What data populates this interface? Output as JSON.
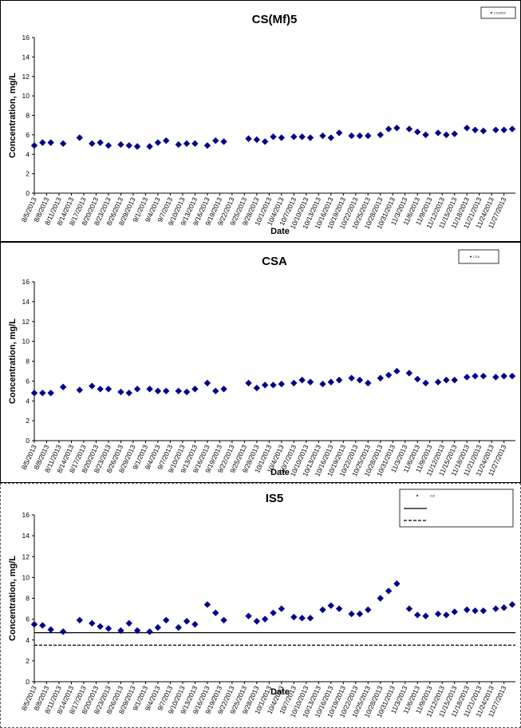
{
  "chart_data": [
    {
      "type": "scatter",
      "title": "CS(Mf)5",
      "xlabel": "Date",
      "ylabel": "Concentration, mg/L",
      "ylim": [
        0,
        16
      ],
      "yticks": [
        0,
        2,
        4,
        6,
        8,
        10,
        12,
        14,
        16
      ],
      "grid": false,
      "legend": "top-right",
      "legend_entries": [
        "CS(Mf)5"
      ],
      "x_tick_labels": [
        "8/5/2013",
        "8/8/2013",
        "8/11/2013",
        "8/14/2013",
        "8/17/2013",
        "8/20/2013",
        "8/23/2013",
        "8/26/2013",
        "8/29/2013",
        "9/1/2013",
        "9/4/2013",
        "9/7/2013",
        "9/10/2013",
        "9/13/2013",
        "9/16/2013",
        "9/19/2013",
        "9/22/2013",
        "9/25/2013",
        "9/28/2013",
        "10/1/2013",
        "10/4/2013",
        "10/7/2013",
        "10/10/2013",
        "10/13/2013",
        "10/16/2013",
        "10/19/2013",
        "10/22/2013",
        "10/25/2013",
        "10/28/2013",
        "10/31/2013",
        "11/3/2013",
        "11/6/2013",
        "11/9/2013",
        "11/12/2013",
        "11/15/2013",
        "11/18/2013",
        "11/21/2013",
        "11/24/2013",
        "11/27/2013"
      ],
      "series": [
        {
          "name": "CS(Mf)5",
          "color": "#00008B",
          "marker": "diamond",
          "x": [
            "8/5/2013",
            "8/7/2013",
            "8/9/2013",
            "8/12/2013",
            "8/16/2013",
            "8/19/2013",
            "8/21/2013",
            "8/23/2013",
            "8/26/2013",
            "8/28/2013",
            "8/30/2013",
            "9/2/2013",
            "9/4/2013",
            "9/6/2013",
            "9/9/2013",
            "9/11/2013",
            "9/13/2013",
            "9/16/2013",
            "9/18/2013",
            "9/20/2013",
            "9/26/2013",
            "9/28/2013",
            "9/30/2013",
            "10/2/2013",
            "10/4/2013",
            "10/7/2013",
            "10/9/2013",
            "10/11/2013",
            "10/14/2013",
            "10/16/2013",
            "10/18/2013",
            "10/21/2013",
            "10/23/2013",
            "10/25/2013",
            "10/28/2013",
            "10/30/2013",
            "11/1/2013",
            "11/4/2013",
            "11/6/2013",
            "11/8/2013",
            "11/11/2013",
            "11/13/2013",
            "11/15/2013",
            "11/18/2013",
            "11/20/2013",
            "11/22/2013",
            "11/25/2013",
            "11/27/2013",
            "11/29/2013"
          ],
          "y": [
            4.9,
            5.2,
            5.2,
            5.1,
            5.7,
            5.1,
            5.2,
            4.9,
            5.0,
            4.9,
            4.8,
            4.8,
            5.2,
            5.4,
            5.0,
            5.1,
            5.1,
            4.9,
            5.4,
            5.3,
            5.6,
            5.5,
            5.3,
            5.8,
            5.7,
            5.8,
            5.8,
            5.7,
            5.9,
            5.7,
            6.2,
            5.9,
            5.9,
            5.9,
            6.0,
            6.6,
            6.7,
            6.6,
            6.3,
            6.0,
            6.2,
            6.0,
            6.1,
            6.7,
            6.5,
            6.4,
            6.5,
            6.5,
            6.6
          ]
        }
      ]
    },
    {
      "type": "scatter",
      "title": "CSA",
      "xlabel": "Date",
      "ylabel": "Concentration, mg/L",
      "ylim": [
        0,
        16
      ],
      "yticks": [
        0,
        2,
        4,
        6,
        8,
        10,
        12,
        14,
        16
      ],
      "grid": false,
      "legend": "top-right",
      "legend_entries": [
        "CSA"
      ],
      "x_tick_labels": [
        "8/5/2013",
        "8/8/2013",
        "8/11/2013",
        "8/14/2013",
        "8/17/2013",
        "8/20/2013",
        "8/23/2013",
        "8/26/2013",
        "8/29/2013",
        "9/1/2013",
        "9/4/2013",
        "9/7/2013",
        "9/10/2013",
        "9/13/2013",
        "9/16/2013",
        "9/19/2013",
        "9/22/2013",
        "9/25/2013",
        "9/28/2013",
        "10/1/2013",
        "10/4/2013",
        "10/7/2013",
        "10/10/2013",
        "10/13/2013",
        "10/16/2013",
        "10/19/2013",
        "10/22/2013",
        "10/25/2013",
        "10/28/2013",
        "10/31/2013",
        "11/3/2013",
        "11/6/2013",
        "11/9/2013",
        "11/12/2013",
        "11/15/2013",
        "11/18/2013",
        "11/21/2013",
        "11/24/2013",
        "11/27/2013"
      ],
      "series": [
        {
          "name": "CSA",
          "color": "#00008B",
          "marker": "diamond",
          "x": [
            "8/5/2013",
            "8/7/2013",
            "8/9/2013",
            "8/12/2013",
            "8/16/2013",
            "8/19/2013",
            "8/21/2013",
            "8/23/2013",
            "8/26/2013",
            "8/28/2013",
            "8/30/2013",
            "9/2/2013",
            "9/4/2013",
            "9/6/2013",
            "9/9/2013",
            "9/11/2013",
            "9/13/2013",
            "9/16/2013",
            "9/18/2013",
            "9/20/2013",
            "9/26/2013",
            "9/28/2013",
            "9/30/2013",
            "10/2/2013",
            "10/4/2013",
            "10/7/2013",
            "10/9/2013",
            "10/11/2013",
            "10/14/2013",
            "10/16/2013",
            "10/18/2013",
            "10/21/2013",
            "10/23/2013",
            "10/25/2013",
            "10/28/2013",
            "10/30/2013",
            "11/1/2013",
            "11/4/2013",
            "11/6/2013",
            "11/8/2013",
            "11/11/2013",
            "11/13/2013",
            "11/15/2013",
            "11/18/2013",
            "11/20/2013",
            "11/22/2013",
            "11/25/2013",
            "11/27/2013",
            "11/29/2013"
          ],
          "y": [
            4.8,
            4.8,
            4.8,
            5.4,
            5.1,
            5.5,
            5.2,
            5.2,
            4.9,
            4.8,
            5.2,
            5.2,
            5.0,
            5.0,
            5.0,
            4.9,
            5.2,
            5.8,
            5.0,
            5.2,
            5.8,
            5.3,
            5.6,
            5.6,
            5.7,
            5.8,
            6.1,
            5.9,
            5.7,
            5.9,
            6.1,
            6.3,
            6.1,
            5.8,
            6.3,
            6.6,
            7.0,
            6.8,
            6.2,
            5.8,
            5.9,
            6.1,
            6.1,
            6.4,
            6.5,
            6.5,
            6.4,
            6.5,
            6.5
          ]
        }
      ]
    },
    {
      "type": "scatter",
      "title": "IS5",
      "xlabel": "Date",
      "ylabel": "Concentration, mg/L",
      "ylim": [
        0,
        16
      ],
      "yticks": [
        0,
        2,
        4,
        6,
        8,
        10,
        12,
        14,
        16
      ],
      "grid": false,
      "legend": "top-right",
      "legend_entries": [
        "IS5"
      ],
      "x_tick_labels": [
        "8/5/2013",
        "8/8/2013",
        "8/11/2013",
        "8/14/2013",
        "8/17/2013",
        "8/20/2013",
        "8/23/2013",
        "8/26/2013",
        "8/29/2013",
        "9/1/2013",
        "9/4/2013",
        "9/7/2013",
        "9/10/2013",
        "9/13/2013",
        "9/16/2013",
        "9/19/2013",
        "9/22/2013",
        "9/25/2013",
        "9/28/2013",
        "10/1/2013",
        "10/4/2013",
        "10/7/2013",
        "10/10/2013",
        "10/13/2013",
        "10/16/2013",
        "10/19/2013",
        "10/22/2013",
        "10/25/2013",
        "10/28/2013",
        "10/31/2013",
        "11/3/2013",
        "11/6/2013",
        "11/9/2013",
        "11/12/2013",
        "11/15/2013",
        "11/18/2013",
        "11/21/2013",
        "11/24/2013",
        "11/27/2013"
      ],
      "reference_lines": [
        {
          "y": 4.7,
          "style": "solid",
          "color": "#000000"
        },
        {
          "y": 3.5,
          "style": "dashed",
          "color": "#000000"
        }
      ],
      "series": [
        {
          "name": "IS5",
          "color": "#00008B",
          "marker": "diamond",
          "x": [
            "8/5/2013",
            "8/7/2013",
            "8/9/2013",
            "8/12/2013",
            "8/16/2013",
            "8/19/2013",
            "8/21/2013",
            "8/23/2013",
            "8/26/2013",
            "8/28/2013",
            "8/30/2013",
            "9/2/2013",
            "9/4/2013",
            "9/6/2013",
            "9/9/2013",
            "9/11/2013",
            "9/13/2013",
            "9/16/2013",
            "9/18/2013",
            "9/20/2013",
            "9/26/2013",
            "9/28/2013",
            "9/30/2013",
            "10/2/2013",
            "10/4/2013",
            "10/7/2013",
            "10/9/2013",
            "10/11/2013",
            "10/14/2013",
            "10/16/2013",
            "10/18/2013",
            "10/21/2013",
            "10/23/2013",
            "10/25/2013",
            "10/28/2013",
            "10/30/2013",
            "11/1/2013",
            "11/4/2013",
            "11/6/2013",
            "11/8/2013",
            "11/11/2013",
            "11/13/2013",
            "11/15/2013",
            "11/18/2013",
            "11/20/2013",
            "11/22/2013",
            "11/25/2013",
            "11/27/2013",
            "11/29/2013"
          ],
          "y": [
            5.5,
            5.4,
            5.0,
            4.8,
            5.9,
            5.6,
            5.3,
            5.1,
            4.9,
            5.6,
            4.9,
            4.8,
            5.2,
            5.9,
            5.2,
            5.8,
            5.5,
            7.4,
            6.6,
            5.9,
            6.3,
            5.8,
            6.0,
            6.6,
            7.0,
            6.2,
            6.1,
            6.1,
            6.9,
            7.3,
            7.0,
            6.5,
            6.5,
            6.9,
            8.0,
            8.7,
            9.4,
            7.0,
            6.4,
            6.3,
            6.5,
            6.4,
            6.7,
            6.9,
            6.8,
            6.8,
            7.0,
            7.1,
            7.4
          ]
        }
      ]
    }
  ]
}
